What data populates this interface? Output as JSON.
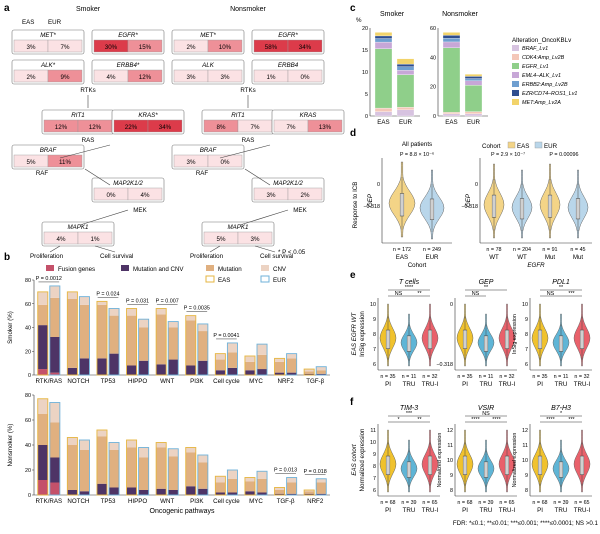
{
  "panels": {
    "a": "a",
    "b": "b",
    "c": "c",
    "d": "d",
    "e": "e",
    "f": "f"
  },
  "colors": {
    "eas_violin": "#f3d487",
    "eur_violin": "#b9d6ea",
    "pi": "#f0c22e",
    "tru": "#5fb5d6",
    "trui": "#e9616b",
    "fusion": "#c4516a",
    "mut_cnv": "#4e3466",
    "mutation": "#e0b080",
    "cnv": "#ecd3c3",
    "heat_high": "#dc3b4a",
    "heat_mid": "#ee9098",
    "heat_low": "#fbe2e4"
  },
  "panel_a": {
    "smoker_title": "Smoker",
    "nonsmoker_title": "Nonsmoker",
    "col_eas": "EAS",
    "col_eur": "EUR",
    "footnote": "* P < 0.05",
    "group_labels": [
      "RTKs",
      "RAS",
      "RAF",
      "MEK"
    ],
    "outcomes": [
      "Proliferation",
      "Cell survival"
    ],
    "smoker": [
      {
        "gene": "MET*",
        "eas": "3%",
        "eur": "7%"
      },
      {
        "gene": "EGFR*",
        "eas": "30%",
        "eur": "15%"
      },
      {
        "gene": "ALK*",
        "eas": "2%",
        "eur": "9%"
      },
      {
        "gene": "ERBB4*",
        "eas": "4%",
        "eur": "12%"
      },
      {
        "gene": "RIT1",
        "eas": "12%",
        "eur": "12%"
      },
      {
        "gene": "KRAS*",
        "eas": "22%",
        "eur": "34%"
      },
      {
        "gene": "BRAF",
        "eas": "5%",
        "eur": "11%"
      },
      {
        "gene": "MAP2K1/2",
        "eas": "0%",
        "eur": "4%"
      },
      {
        "gene": "MAPK1",
        "eas": "4%",
        "eur": "1%"
      }
    ],
    "nonsmoker": [
      {
        "gene": "MET*",
        "eas": "2%",
        "eur": "10%"
      },
      {
        "gene": "EGFR*",
        "eas": "58%",
        "eur": "34%"
      },
      {
        "gene": "ALK",
        "eas": "3%",
        "eur": "3%"
      },
      {
        "gene": "ERBB4",
        "eas": "1%",
        "eur": "0%"
      },
      {
        "gene": "RIT1",
        "eas": "8%",
        "eur": "7%"
      },
      {
        "gene": "KRAS",
        "eas": "7%",
        "eur": "13%"
      },
      {
        "gene": "BRAF",
        "eas": "3%",
        "eur": "0%"
      },
      {
        "gene": "MAP2K1/2",
        "eas": "3%",
        "eur": "2%"
      },
      {
        "gene": "MAPK1",
        "eas": "5%",
        "eur": "3%"
      }
    ]
  },
  "chart_data": [
    {
      "id": "b-smoker",
      "type": "bar",
      "ylabel": "Smoker (%)",
      "ylim": [
        0,
        80
      ],
      "yticks": [
        0,
        20,
        40,
        60,
        80
      ],
      "legend": [
        "Fusion genes",
        "Mutation and CNV",
        "Mutation",
        "CNV",
        "EAS",
        "EUR"
      ],
      "xlabel": "Oncogenic pathways",
      "categories": [
        "RTK/RAS",
        "NOTCH",
        "TP53",
        "HIPPO",
        "WNT",
        "PI3K",
        "Cell cycle",
        "MYC",
        "NRF2",
        "TGF-β"
      ],
      "series": [
        {
          "name": "EAS",
          "fusion": [
            5,
            0,
            0,
            0,
            0,
            0,
            0,
            0,
            0,
            0
          ],
          "mut_cnv": [
            37,
            6,
            14,
            8,
            9,
            8,
            4,
            4,
            2,
            1
          ],
          "mutation": [
            17,
            58,
            45,
            42,
            42,
            38,
            9,
            7,
            9,
            2
          ],
          "cnv": [
            11,
            6,
            3,
            6,
            5,
            4,
            5,
            5,
            3,
            2
          ]
        },
        {
          "name": "EUR",
          "fusion": [
            2,
            0,
            0,
            0,
            0,
            0,
            0,
            0,
            0,
            0
          ],
          "mut_cnv": [
            30,
            14,
            18,
            12,
            13,
            12,
            6,
            5,
            2,
            1
          ],
          "mutation": [
            33,
            45,
            32,
            28,
            27,
            25,
            13,
            12,
            12,
            3
          ],
          "cnv": [
            10,
            7,
            6,
            7,
            5,
            6,
            8,
            9,
            4,
            3
          ]
        }
      ],
      "pvalues": [
        {
          "label": "P = 0.0012",
          "category": "RTK/RAS"
        },
        {
          "label": "P = 0.024",
          "category": "TP53"
        },
        {
          "label": "P = 0.031",
          "category": "HIPPO"
        },
        {
          "label": "P = 0.007",
          "category": "WNT"
        },
        {
          "label": "P = 0.0035",
          "category": "PI3K"
        },
        {
          "label": "P = 0.0041",
          "category": "Cell cycle"
        }
      ]
    },
    {
      "id": "b-nonsmoker",
      "type": "bar",
      "ylabel": "Nonsmoker (%)",
      "ylim": [
        0,
        80
      ],
      "yticks": [
        0,
        20,
        40,
        60,
        80
      ],
      "xlabel": "Oncogenic pathways",
      "categories": [
        "RTK/RAS",
        "NOTCH",
        "TP53",
        "HIPPO",
        "WNT",
        "PI3K",
        "Cell cycle",
        "MYC",
        "TGF-β",
        "NRF2"
      ],
      "series": [
        {
          "name": "EAS",
          "fusion": [
            12,
            0,
            0,
            0,
            0,
            0,
            0,
            0,
            0,
            0
          ],
          "mut_cnv": [
            28,
            4,
            9,
            6,
            5,
            7,
            2,
            3,
            1,
            1
          ],
          "mutation": [
            25,
            36,
            38,
            32,
            33,
            27,
            8,
            8,
            3,
            2
          ],
          "cnv": [
            12,
            6,
            5,
            6,
            4,
            4,
            5,
            3,
            2,
            1
          ]
        },
        {
          "name": "EUR",
          "fusion": [
            10,
            0,
            0,
            0,
            0,
            0,
            0,
            0,
            0,
            0
          ],
          "mut_cnv": [
            20,
            3,
            6,
            4,
            4,
            5,
            2,
            2,
            1,
            1
          ],
          "mutation": [
            28,
            33,
            30,
            26,
            27,
            21,
            11,
            11,
            9,
            9
          ],
          "cnv": [
            16,
            8,
            6,
            8,
            6,
            6,
            7,
            6,
            4,
            3
          ]
        }
      ],
      "pvalues": [
        {
          "label": "P = 0.013",
          "category": "TGF-β"
        },
        {
          "label": "P = 0.018",
          "category": "NRF2"
        }
      ]
    },
    {
      "id": "c",
      "type": "bar",
      "ylabel": "%",
      "legend_title": "Alteration_OncoKBLv",
      "legend": [
        "BRAF_Lv1",
        "CDK4:Amp_Lv2B",
        "EGFR_Lv1",
        "EML4–ALK_Lv1",
        "ERBB2:Amp_Lv2B",
        "EZR/CD74–ROS1_Lv1",
        "MET:Amp_Lv2A"
      ],
      "panels": [
        {
          "title": "Smoker",
          "categories": [
            "EAS",
            "EUR"
          ],
          "ylim": [
            0,
            20
          ],
          "yticks": [
            0,
            5,
            10,
            15,
            20
          ],
          "stacks": {
            "EAS": [
              1.0,
              0.8,
              13.5,
              1.5,
              0.8,
              0.6,
              0.8
            ],
            "EUR": [
              1.4,
              0.6,
              7.4,
              1.0,
              0.8,
              0.6,
              1.2
            ]
          }
        },
        {
          "title": "Nonsmoker",
          "categories": [
            "EAS",
            "EUR"
          ],
          "ylim": [
            0,
            60
          ],
          "yticks": [
            0,
            20,
            40,
            60
          ],
          "stacks": {
            "EAS": [
              1.5,
              1.0,
              44,
              4.0,
              2.5,
              2.0,
              2.0
            ],
            "EUR": [
              1.5,
              1.5,
              18,
              3.0,
              1.5,
              1.5,
              1.5
            ]
          }
        }
      ]
    },
    {
      "id": "d",
      "type": "violin",
      "ylabel": "Response to ICB",
      "inner_ylabel": "GEP",
      "ytick_labels": [
        "0",
        "−0.318"
      ],
      "all_patients": {
        "title": "All patients",
        "pvalue": "P = 8.8 × 10⁻⁶",
        "categories": [
          "EAS",
          "EUR"
        ],
        "n": [
          "n = 172",
          "n = 249"
        ],
        "xlabel": "Cohort"
      },
      "by_egfr": {
        "legend_title": "Cohort",
        "legend": [
          "EAS",
          "EUR"
        ],
        "pvalues": [
          "P = 2.9 × 10⁻⁷",
          "P = 0.00096"
        ],
        "categories": [
          "WT",
          "WT",
          "Mut",
          "Mut"
        ],
        "n": [
          "n = 78",
          "n = 204",
          "n = 91",
          "n = 45"
        ],
        "xlabel": "EGFR"
      }
    },
    {
      "id": "e",
      "type": "violin",
      "ylabel": "EAS EGFR WT",
      "ylabel2": "InSig expression",
      "categories": [
        "PI",
        "TRU",
        "TRU-I"
      ],
      "plots": [
        {
          "title": "T cells",
          "n": [
            "n = 35",
            "n = 11",
            "n = 32"
          ],
          "yticks": [
            "6",
            "7",
            "8",
            "9",
            "10"
          ],
          "sig": [
            "NS",
            "****",
            "**"
          ]
        },
        {
          "title": "GEP",
          "n": [
            "n = 35",
            "n = 11",
            "n = 32"
          ],
          "yticks": [
            "−0.318",
            "0"
          ],
          "sig": [
            "NS",
            "**"
          ]
        },
        {
          "title": "PDL1",
          "n": [
            "n = 35",
            "n = 11",
            "n = 32"
          ],
          "yticks": [
            "6",
            "7",
            "8",
            "9",
            "10"
          ],
          "sig": [
            "NS",
            "**",
            "***"
          ],
          "inner_ylabel": "InSig expression"
        }
      ]
    },
    {
      "id": "f",
      "type": "violin",
      "ylabel": "EAS cohort",
      "ylabel2": "Normalized expression",
      "categories": [
        "PI",
        "TRU",
        "TRU-I"
      ],
      "plots": [
        {
          "title": "TIM-3",
          "n": [
            "n = 68",
            "n = 39",
            "n = 65"
          ],
          "yticks": [
            "6",
            "7",
            "8",
            "9",
            "10",
            "11"
          ],
          "sig": [
            "*",
            "***",
            "**"
          ]
        },
        {
          "title": "VSIR",
          "n": [
            "n = 68",
            "n = 39",
            "n = 65"
          ],
          "yticks": [
            "8",
            "9",
            "10",
            "11",
            "12"
          ],
          "sig": [
            "****",
            "NS",
            "****"
          ],
          "inner_ylabel": "Normalized expression"
        },
        {
          "title": "B7-H3",
          "n": [
            "n = 68",
            "n = 39",
            "n = 65"
          ],
          "yticks": [
            "8",
            "9",
            "10",
            "11",
            "12"
          ],
          "sig": [
            "****",
            "*",
            "***"
          ],
          "inner_ylabel": "Normalized expression"
        }
      ]
    }
  ],
  "footer": "FDR: *≤0.1; **≤0.01; ***≤0.001; ****≤0.0001; NS >0.1"
}
